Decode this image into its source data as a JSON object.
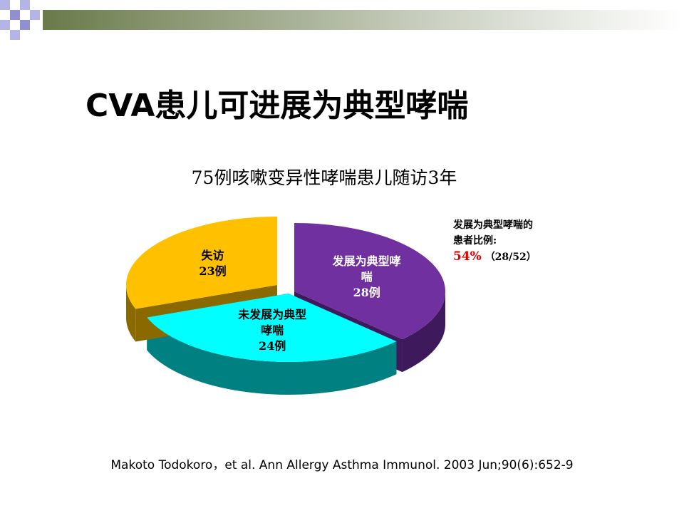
{
  "chart_data": {
    "type": "pie",
    "title": "CVA患儿可进展为典型哮喘",
    "subtitle": "75例咳嗽变异性哮喘患儿随访3年",
    "categories": [
      "发展为典型哮喘",
      "未发展为典型哮喘",
      "失访"
    ],
    "values": [
      28,
      24,
      23
    ],
    "value_labels": [
      "28例",
      "24例",
      "23例"
    ],
    "colors": [
      "#7030a0",
      "#00ffff",
      "#ffc000"
    ],
    "side_colors": [
      "#3e1a5c",
      "#008080",
      "#8a6a00"
    ],
    "annotation": {
      "text": "发展为典型哮喘的患者比例:",
      "highlight": "54%",
      "detail": "（28/52）"
    },
    "citation": "Makoto Todokoro，et al. Ann Allergy Asthma Immunol. 2003 Jun;90(6):652-9"
  }
}
